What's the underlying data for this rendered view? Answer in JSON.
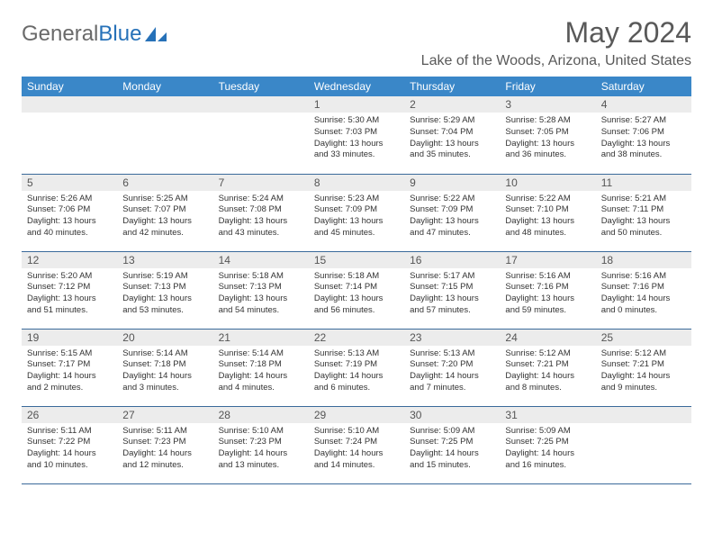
{
  "logo": {
    "text_gray": "General",
    "text_blue": "Blue"
  },
  "title": "May 2024",
  "location": "Lake of the Woods, Arizona, United States",
  "colors": {
    "header_bg": "#3a87c8",
    "header_text": "#ffffff",
    "daynum_bg": "#ececec",
    "border": "#3a6a9a",
    "logo_blue": "#2671b8",
    "title_gray": "#595959"
  },
  "day_headers": [
    "Sunday",
    "Monday",
    "Tuesday",
    "Wednesday",
    "Thursday",
    "Friday",
    "Saturday"
  ],
  "weeks": [
    [
      null,
      null,
      null,
      {
        "n": "1",
        "sr": "5:30 AM",
        "ss": "7:03 PM",
        "dl": "13 hours and 33 minutes."
      },
      {
        "n": "2",
        "sr": "5:29 AM",
        "ss": "7:04 PM",
        "dl": "13 hours and 35 minutes."
      },
      {
        "n": "3",
        "sr": "5:28 AM",
        "ss": "7:05 PM",
        "dl": "13 hours and 36 minutes."
      },
      {
        "n": "4",
        "sr": "5:27 AM",
        "ss": "7:06 PM",
        "dl": "13 hours and 38 minutes."
      }
    ],
    [
      {
        "n": "5",
        "sr": "5:26 AM",
        "ss": "7:06 PM",
        "dl": "13 hours and 40 minutes."
      },
      {
        "n": "6",
        "sr": "5:25 AM",
        "ss": "7:07 PM",
        "dl": "13 hours and 42 minutes."
      },
      {
        "n": "7",
        "sr": "5:24 AM",
        "ss": "7:08 PM",
        "dl": "13 hours and 43 minutes."
      },
      {
        "n": "8",
        "sr": "5:23 AM",
        "ss": "7:09 PM",
        "dl": "13 hours and 45 minutes."
      },
      {
        "n": "9",
        "sr": "5:22 AM",
        "ss": "7:09 PM",
        "dl": "13 hours and 47 minutes."
      },
      {
        "n": "10",
        "sr": "5:22 AM",
        "ss": "7:10 PM",
        "dl": "13 hours and 48 minutes."
      },
      {
        "n": "11",
        "sr": "5:21 AM",
        "ss": "7:11 PM",
        "dl": "13 hours and 50 minutes."
      }
    ],
    [
      {
        "n": "12",
        "sr": "5:20 AM",
        "ss": "7:12 PM",
        "dl": "13 hours and 51 minutes."
      },
      {
        "n": "13",
        "sr": "5:19 AM",
        "ss": "7:13 PM",
        "dl": "13 hours and 53 minutes."
      },
      {
        "n": "14",
        "sr": "5:18 AM",
        "ss": "7:13 PM",
        "dl": "13 hours and 54 minutes."
      },
      {
        "n": "15",
        "sr": "5:18 AM",
        "ss": "7:14 PM",
        "dl": "13 hours and 56 minutes."
      },
      {
        "n": "16",
        "sr": "5:17 AM",
        "ss": "7:15 PM",
        "dl": "13 hours and 57 minutes."
      },
      {
        "n": "17",
        "sr": "5:16 AM",
        "ss": "7:16 PM",
        "dl": "13 hours and 59 minutes."
      },
      {
        "n": "18",
        "sr": "5:16 AM",
        "ss": "7:16 PM",
        "dl": "14 hours and 0 minutes."
      }
    ],
    [
      {
        "n": "19",
        "sr": "5:15 AM",
        "ss": "7:17 PM",
        "dl": "14 hours and 2 minutes."
      },
      {
        "n": "20",
        "sr": "5:14 AM",
        "ss": "7:18 PM",
        "dl": "14 hours and 3 minutes."
      },
      {
        "n": "21",
        "sr": "5:14 AM",
        "ss": "7:18 PM",
        "dl": "14 hours and 4 minutes."
      },
      {
        "n": "22",
        "sr": "5:13 AM",
        "ss": "7:19 PM",
        "dl": "14 hours and 6 minutes."
      },
      {
        "n": "23",
        "sr": "5:13 AM",
        "ss": "7:20 PM",
        "dl": "14 hours and 7 minutes."
      },
      {
        "n": "24",
        "sr": "5:12 AM",
        "ss": "7:21 PM",
        "dl": "14 hours and 8 minutes."
      },
      {
        "n": "25",
        "sr": "5:12 AM",
        "ss": "7:21 PM",
        "dl": "14 hours and 9 minutes."
      }
    ],
    [
      {
        "n": "26",
        "sr": "5:11 AM",
        "ss": "7:22 PM",
        "dl": "14 hours and 10 minutes."
      },
      {
        "n": "27",
        "sr": "5:11 AM",
        "ss": "7:23 PM",
        "dl": "14 hours and 12 minutes."
      },
      {
        "n": "28",
        "sr": "5:10 AM",
        "ss": "7:23 PM",
        "dl": "14 hours and 13 minutes."
      },
      {
        "n": "29",
        "sr": "5:10 AM",
        "ss": "7:24 PM",
        "dl": "14 hours and 14 minutes."
      },
      {
        "n": "30",
        "sr": "5:09 AM",
        "ss": "7:25 PM",
        "dl": "14 hours and 15 minutes."
      },
      {
        "n": "31",
        "sr": "5:09 AM",
        "ss": "7:25 PM",
        "dl": "14 hours and 16 minutes."
      },
      null
    ]
  ]
}
